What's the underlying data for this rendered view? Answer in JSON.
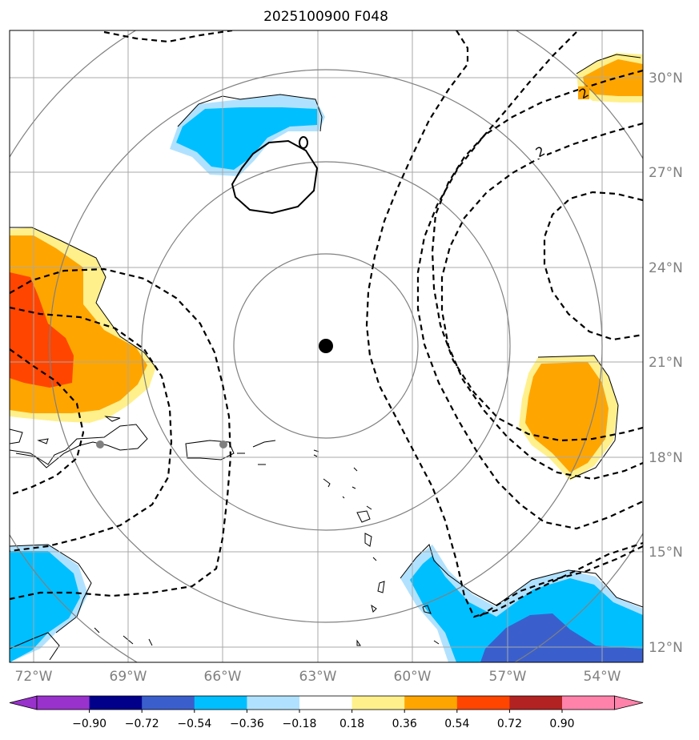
{
  "title": "2025100900 F048",
  "map": {
    "lon_labels": [
      "72°W",
      "69°W",
      "66°W",
      "63°W",
      "60°W",
      "57°W",
      "54°W"
    ],
    "lat_labels": [
      "30°N",
      "27°N",
      "24°N",
      "21°N",
      "18°N",
      "15°N",
      "12°N"
    ],
    "center_marker": "storm-center-dot",
    "contour_labels": [
      "0",
      "2",
      "2"
    ],
    "range_rings": 4
  },
  "colorbar": {
    "labels": [
      "−0.90",
      "−0.72",
      "−0.54",
      "−0.36",
      "−0.18",
      "0.18",
      "0.36",
      "0.54",
      "0.72",
      "0.90"
    ],
    "colors": [
      "#9932cc",
      "#00008b",
      "#3a5fcd",
      "#00bfff",
      "#b0e2ff",
      "#ffffff",
      "#fff08c",
      "#ffa500",
      "#ff4500",
      "#b22222",
      "#ff82ab"
    ]
  },
  "colors": {
    "positive_low": "#fff08c",
    "positive_mid": "#ffa500",
    "positive_high": "#ff4500",
    "negative_low": "#b0e2ff",
    "negative_mid": "#00bfff",
    "negative_high": "#3a5fcd",
    "grid": "#a9a9a9",
    "rings": "#808080"
  }
}
